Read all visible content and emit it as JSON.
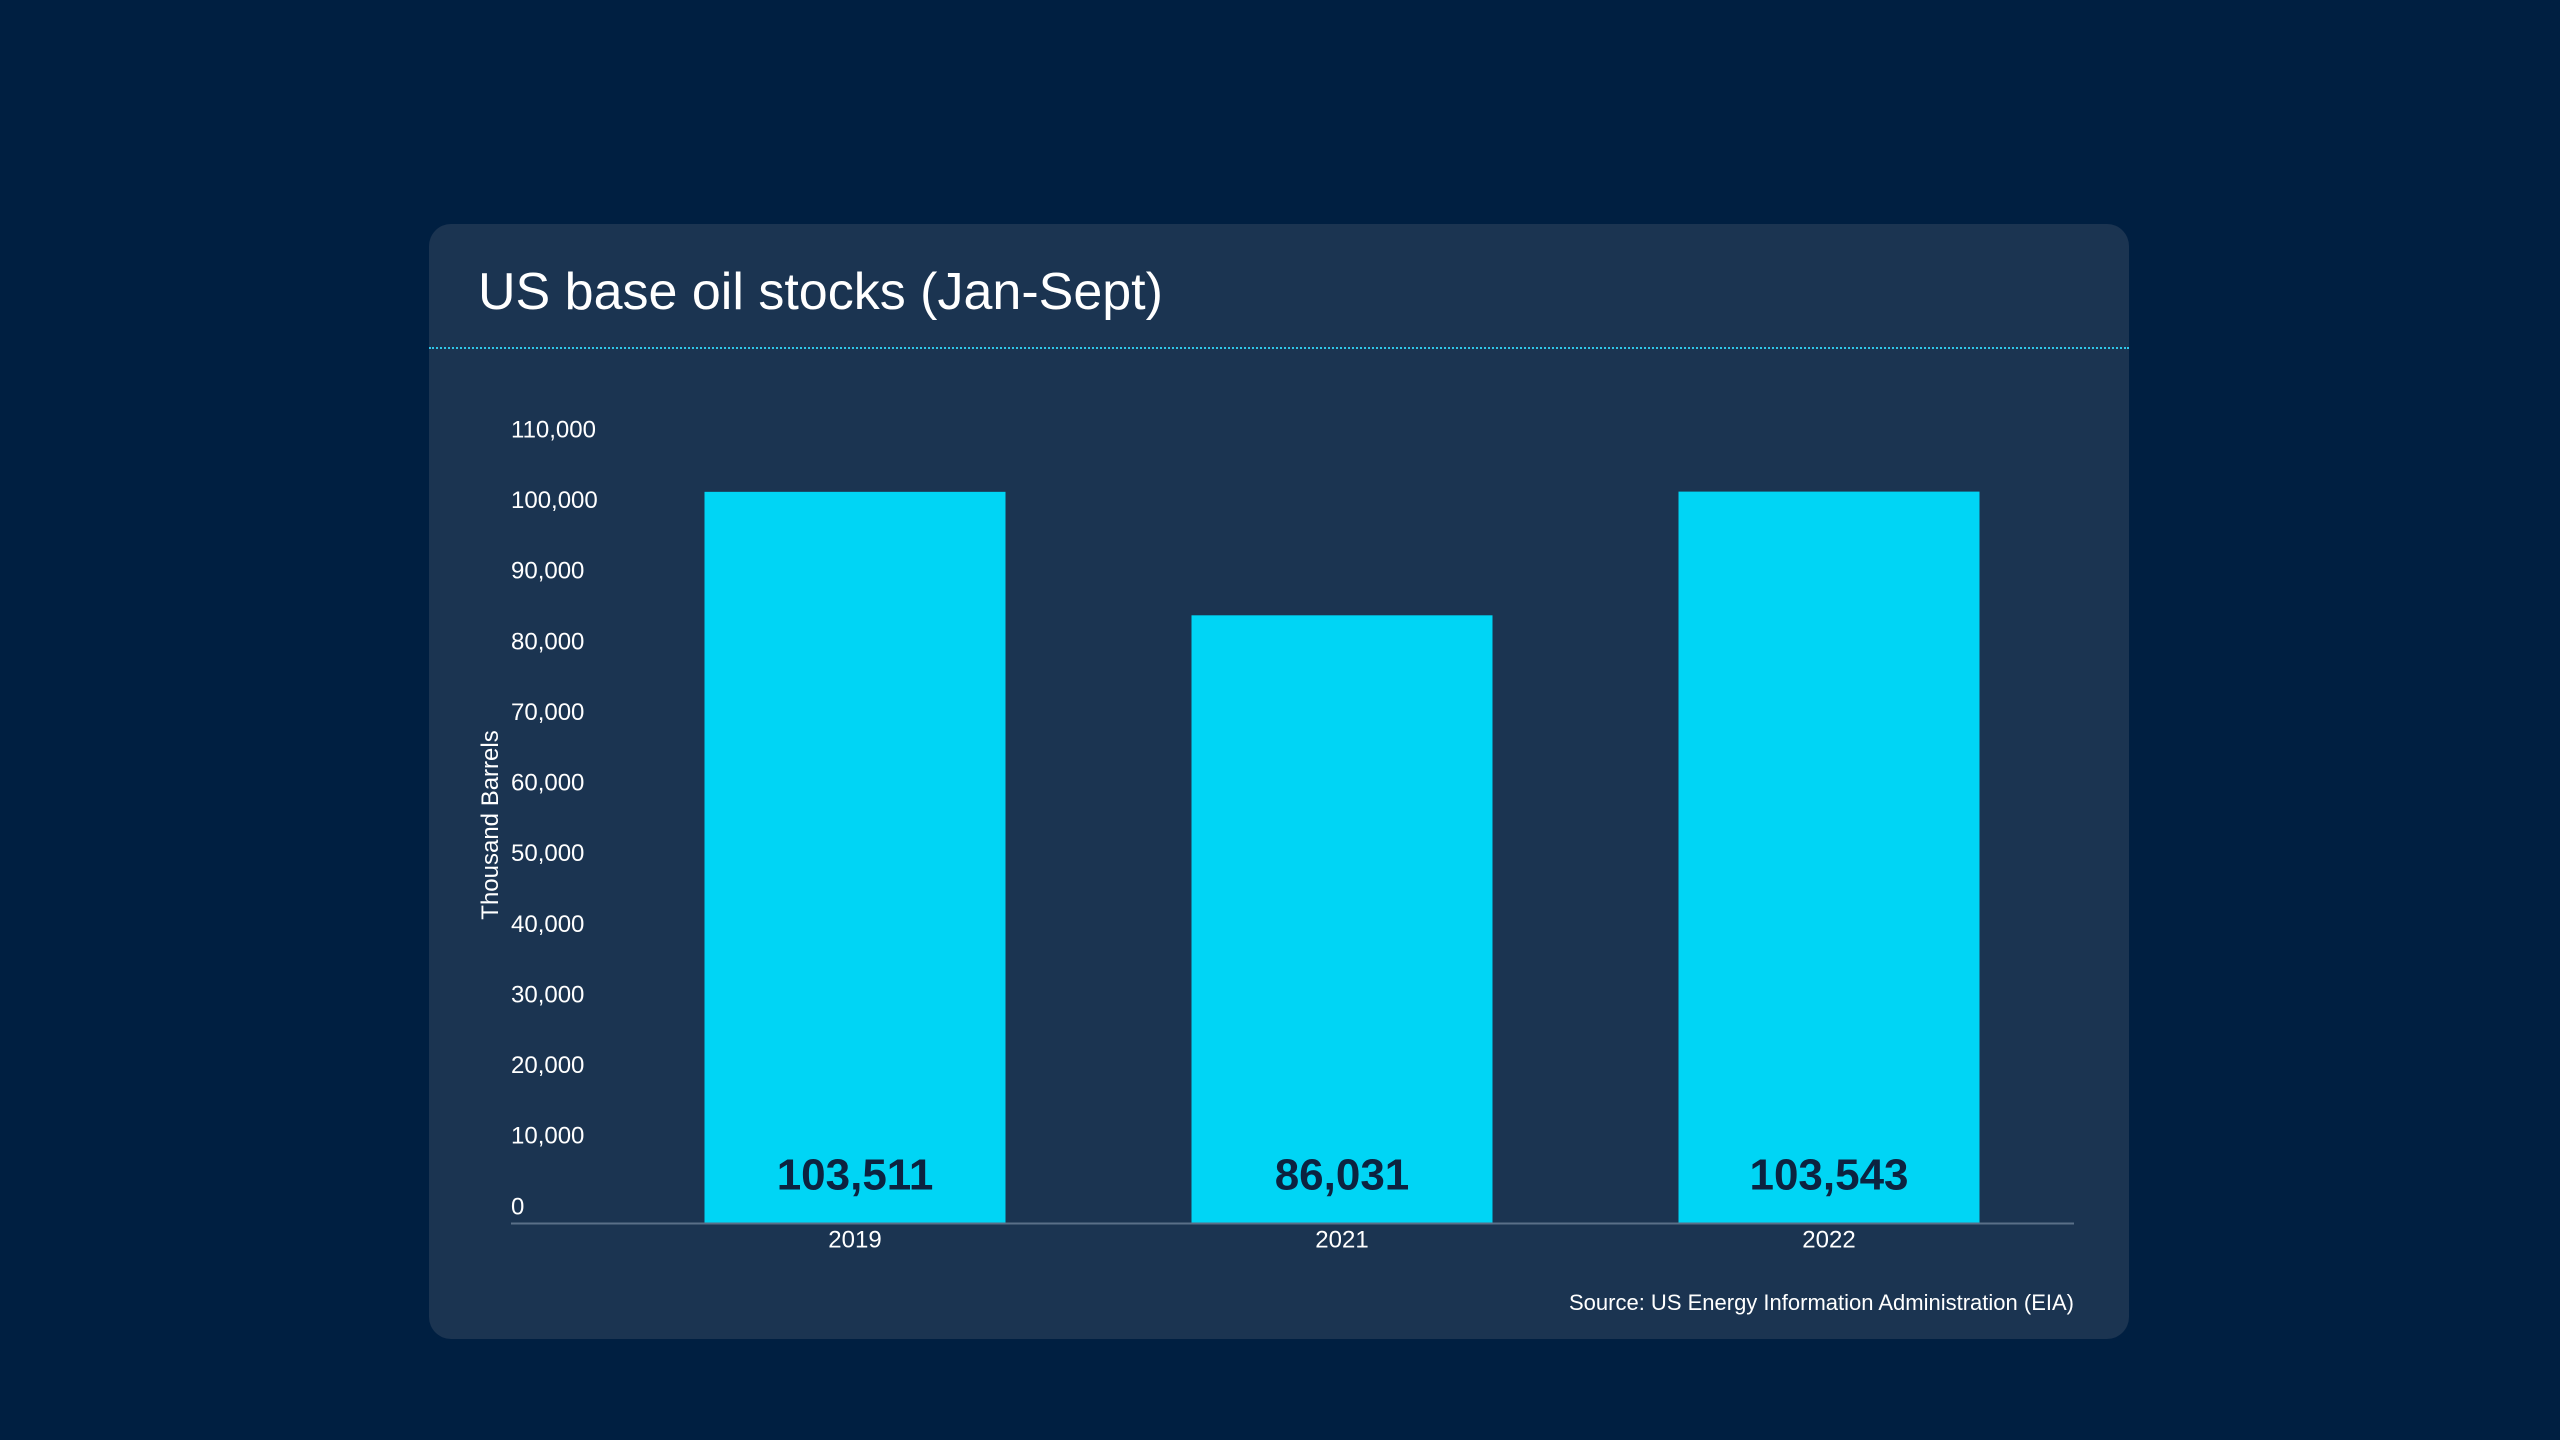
{
  "chart_data": {
    "type": "bar",
    "title": "US base oil stocks (Jan-Sept)",
    "xlabel": "",
    "ylabel": "Thousand Barrels",
    "categories": [
      "2019",
      "2021",
      "2022"
    ],
    "values": [
      103511,
      86031,
      103543
    ],
    "value_labels": [
      "103,511",
      "86,031",
      "103,543"
    ],
    "ylim": [
      0,
      110000
    ],
    "yticks": [
      0,
      10000,
      20000,
      30000,
      40000,
      50000,
      60000,
      70000,
      80000,
      90000,
      100000,
      110000
    ],
    "ytick_labels": [
      "0",
      "10,000",
      "20,000",
      "30,000",
      "40,000",
      "50,000",
      "60,000",
      "70,000",
      "80,000",
      "90,000",
      "100,000",
      "110,000"
    ],
    "grid": false,
    "source": "Source: US Energy Information Administration (EIA)",
    "colors": {
      "bar": "#00d5f5",
      "value_label": "#0c2340",
      "background": "#001f41",
      "card": "#1b3451"
    }
  }
}
